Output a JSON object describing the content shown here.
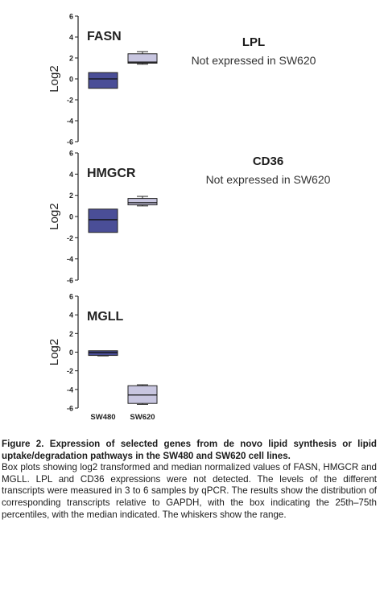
{
  "chart_data": [
    {
      "type": "box",
      "panel_label": "FASN",
      "ylabel": "Log2",
      "ylim": [
        -6,
        6
      ],
      "yticks": [
        -6,
        -4,
        -2,
        0,
        2,
        4,
        6
      ],
      "categories": [
        "SW480",
        "SW620"
      ],
      "boxes": [
        {
          "category": "SW480",
          "min": -0.9,
          "q1": -0.9,
          "median": 0,
          "q3": 0.6,
          "max": 0.6,
          "color": "#4a4e97"
        },
        {
          "category": "SW620",
          "min": 1.4,
          "q1": 1.5,
          "median": 1.6,
          "q3": 2.4,
          "max": 2.6,
          "color": "#c8c6e0"
        }
      ],
      "side_note": {
        "title": "LPL",
        "text": "Not expressed in SW620"
      }
    },
    {
      "type": "box",
      "panel_label": "HMGCR",
      "ylabel": "Log2",
      "ylim": [
        -6,
        6
      ],
      "yticks": [
        -6,
        -4,
        -2,
        0,
        2,
        4,
        6
      ],
      "categories": [
        "SW480",
        "SW620"
      ],
      "boxes": [
        {
          "category": "SW480",
          "min": -1.5,
          "q1": -1.5,
          "median": -0.3,
          "q3": 0.7,
          "max": 0.7,
          "color": "#4a4e97"
        },
        {
          "category": "SW620",
          "min": 1.0,
          "q1": 1.1,
          "median": 1.3,
          "q3": 1.7,
          "max": 1.9,
          "color": "#c8c6e0"
        }
      ],
      "side_note": {
        "title": "CD36",
        "text": "Not expressed in SW620"
      }
    },
    {
      "type": "box",
      "panel_label": "MGLL",
      "ylabel": "Log2",
      "ylim": [
        -6,
        6
      ],
      "yticks": [
        -6,
        -4,
        -2,
        0,
        2,
        4,
        6
      ],
      "categories": [
        "SW480",
        "SW620"
      ],
      "boxes": [
        {
          "category": "SW480",
          "min": -0.4,
          "q1": -0.35,
          "median": -0.05,
          "q3": 0.15,
          "max": 0.15,
          "color": "#4a4e97"
        },
        {
          "category": "SW620",
          "min": -5.6,
          "q1": -5.5,
          "median": -4.6,
          "q3": -3.6,
          "max": -3.5,
          "color": "#c8c6e0"
        }
      ]
    }
  ],
  "caption": {
    "title": "Figure 2. Expression of selected genes from de novo lipid synthesis or lipid uptake/degradation pathways in the SW480 and SW620 cell lines.",
    "body": "Box plots showing log2 transformed and median normalized values of FASN, HMGCR and MGLL. LPL and CD36 expressions were not detected. The levels of the different transcripts were measured in 3 to 6 samples by qPCR. The results show the distribution of corresponding transcripts relative to GAPDH, with the box indicating the 25th–75th percentiles, with the median indicated. The whiskers show the range."
  }
}
